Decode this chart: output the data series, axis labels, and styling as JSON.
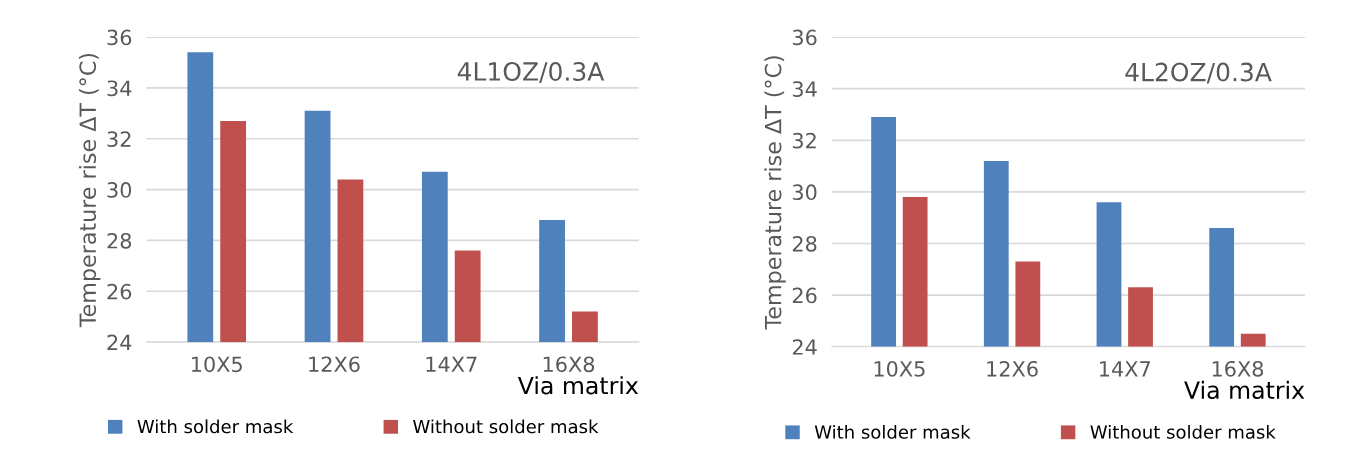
{
  "chart_data": [
    {
      "type": "bar",
      "title": "4L1OZ/0.3A",
      "xlabel": "Via matrix",
      "ylabel": "Temperature rise ΔT (°C)",
      "categories": [
        "10X5",
        "12X6",
        "14X7",
        "16X8"
      ],
      "series": [
        {
          "name": "With solder mask",
          "color": "#4f81bd",
          "values": [
            35.4,
            33.1,
            30.7,
            28.8
          ]
        },
        {
          "name": "Without solder mask",
          "color": "#c0504d",
          "values": [
            32.7,
            30.4,
            27.6,
            25.2
          ]
        }
      ],
      "ylim": [
        24,
        36
      ],
      "yticks": [
        24,
        26,
        28,
        30,
        32,
        34,
        36
      ],
      "grid": "y",
      "legend": "bottom"
    },
    {
      "type": "bar",
      "title": "4L2OZ/0.3A",
      "xlabel": "Via matrix",
      "ylabel": "Temperature rise ΔT (°C)",
      "categories": [
        "10X5",
        "12X6",
        "14X7",
        "16X8"
      ],
      "series": [
        {
          "name": "With solder mask",
          "color": "#4f81bd",
          "values": [
            32.9,
            31.2,
            29.6,
            28.6
          ]
        },
        {
          "name": "Without solder mask",
          "color": "#c0504d",
          "values": [
            29.8,
            27.3,
            26.3,
            24.5
          ]
        }
      ],
      "ylim": [
        24,
        36
      ],
      "yticks": [
        24,
        26,
        28,
        30,
        32,
        34,
        36
      ],
      "grid": "y",
      "legend": "bottom"
    }
  ]
}
